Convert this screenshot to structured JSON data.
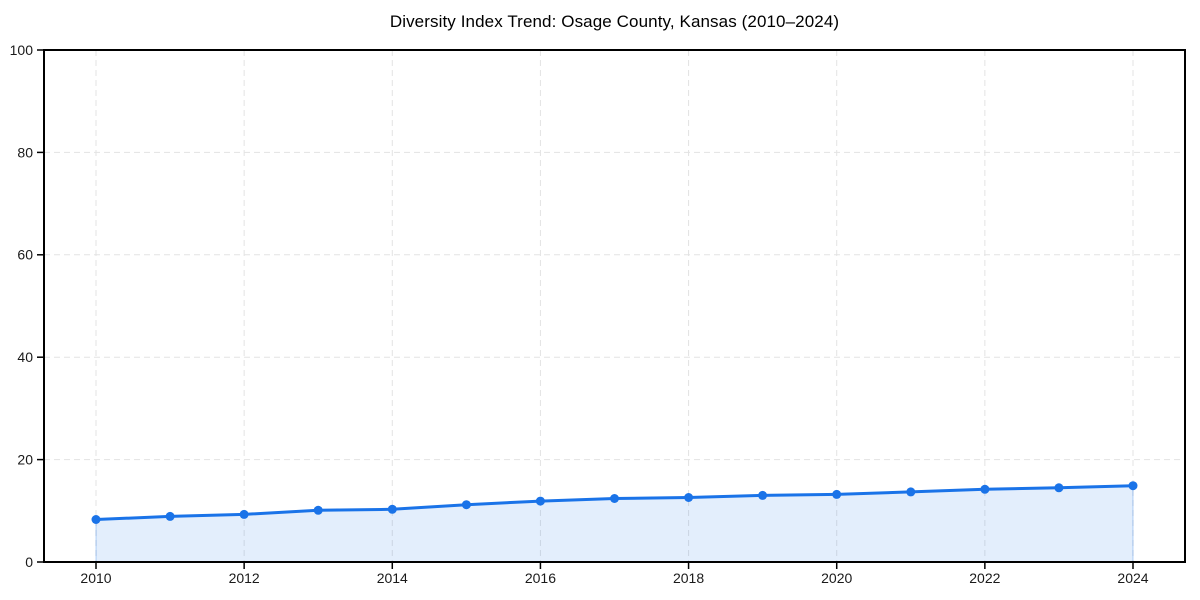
{
  "chart_data": {
    "type": "line",
    "title": "Diversity Index Trend: Osage County, Kansas (2010–2024)",
    "x": [
      2010,
      2011,
      2012,
      2013,
      2014,
      2015,
      2016,
      2017,
      2018,
      2019,
      2020,
      2021,
      2022,
      2023,
      2024
    ],
    "series": [
      {
        "name": "Diversity Index",
        "values": [
          8.3,
          8.9,
          9.3,
          10.1,
          10.3,
          11.2,
          11.9,
          12.4,
          12.6,
          13.0,
          13.2,
          13.7,
          14.2,
          14.5,
          14.9
        ]
      }
    ],
    "xlabel": "",
    "ylabel": "",
    "ylim": [
      0,
      100
    ],
    "yticks": [
      0,
      20,
      40,
      60,
      80,
      100
    ],
    "xticks": [
      2010,
      2012,
      2014,
      2016,
      2018,
      2020,
      2022,
      2024
    ],
    "grid": "dashed",
    "legend": "none",
    "marker": "circle",
    "area_fill": true,
    "colors": {
      "line": "#1a73e8",
      "marker": "#1a73e8",
      "area": "rgba(26,115,232,0.12)",
      "area_edge": "rgba(26,115,232,0.30)",
      "grid": "#e3e3e3",
      "spine": "#000000",
      "tick_label": "#1a1a1a",
      "title": "#000000"
    }
  }
}
